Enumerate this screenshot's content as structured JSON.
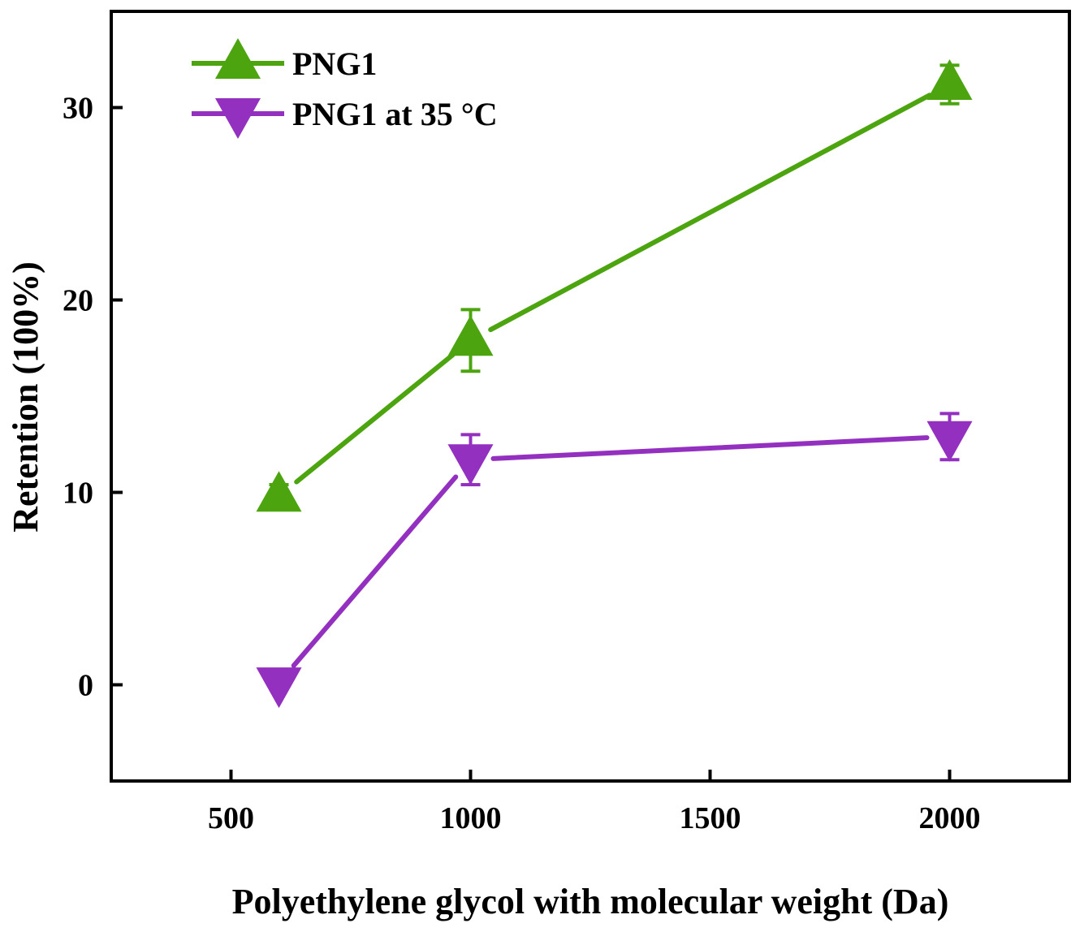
{
  "chart_data": {
    "type": "line",
    "title": "",
    "xlabel": "Polyethylene glycol with molecular weight (Da)",
    "ylabel": "Retention (100%)",
    "xlim": [
      250,
      2250
    ],
    "ylim": [
      -5,
      35
    ],
    "xticks": [
      500,
      1000,
      1500,
      2000
    ],
    "yticks": [
      0,
      10,
      20,
      30
    ],
    "grid": false,
    "legend_position": "top-left",
    "series": [
      {
        "name": "PNG1",
        "color": "#4ca40f",
        "marker": "triangle-up",
        "x": [
          600,
          1000,
          2000
        ],
        "y": [
          9.8,
          17.9,
          31.2
        ],
        "error": [
          0.6,
          1.6,
          1.0
        ]
      },
      {
        "name": "PNG1 at 35 °C",
        "color": "#9330c0",
        "marker": "triangle-down",
        "x": [
          600,
          1000,
          2000
        ],
        "y": [
          0.1,
          11.7,
          12.9
        ],
        "error": [
          0.0,
          1.3,
          1.2
        ]
      }
    ]
  }
}
